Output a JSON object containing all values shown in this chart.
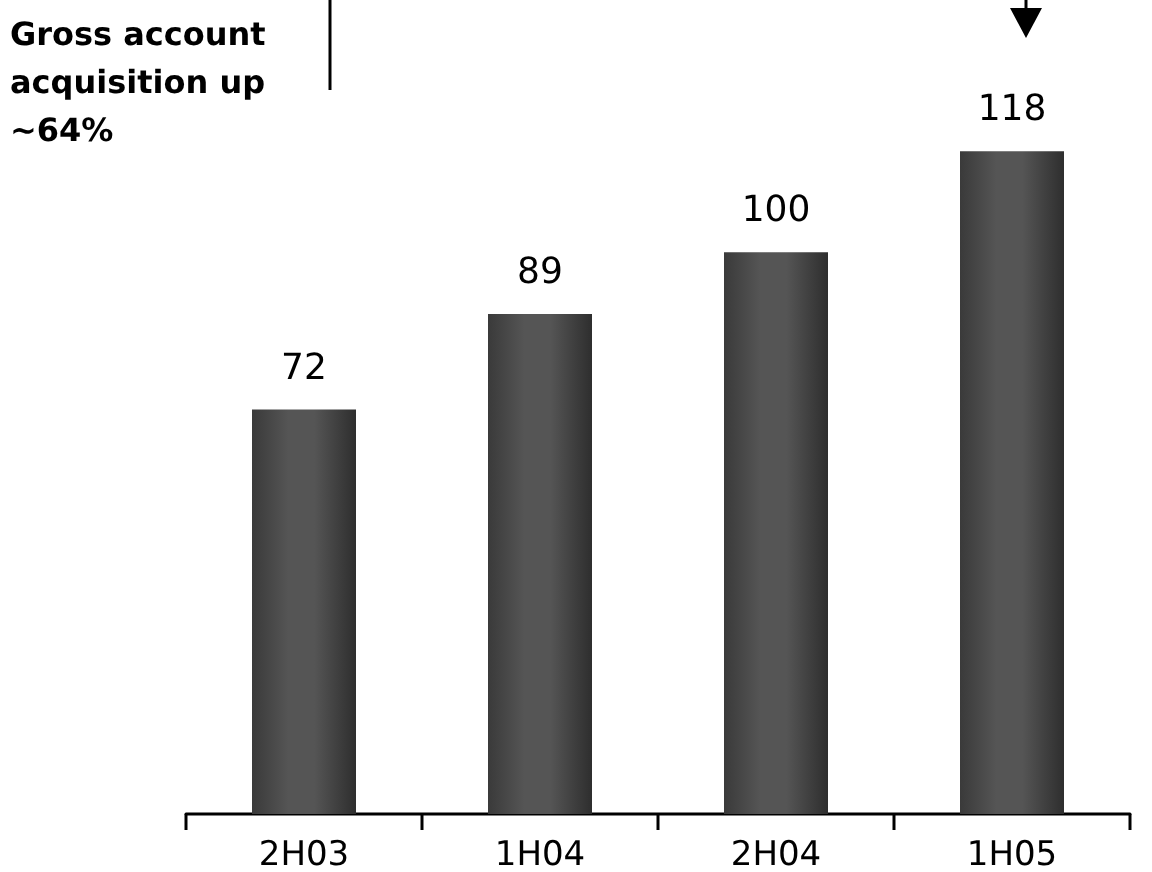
{
  "chart_data": {
    "type": "bar",
    "categories": [
      "2H03",
      "1H04",
      "2H04",
      "1H05"
    ],
    "values": [
      72,
      89,
      100,
      118
    ],
    "color": "#555555",
    "data_labels": true,
    "annotations": [
      "Gross account acquisition up ~64%"
    ]
  }
}
